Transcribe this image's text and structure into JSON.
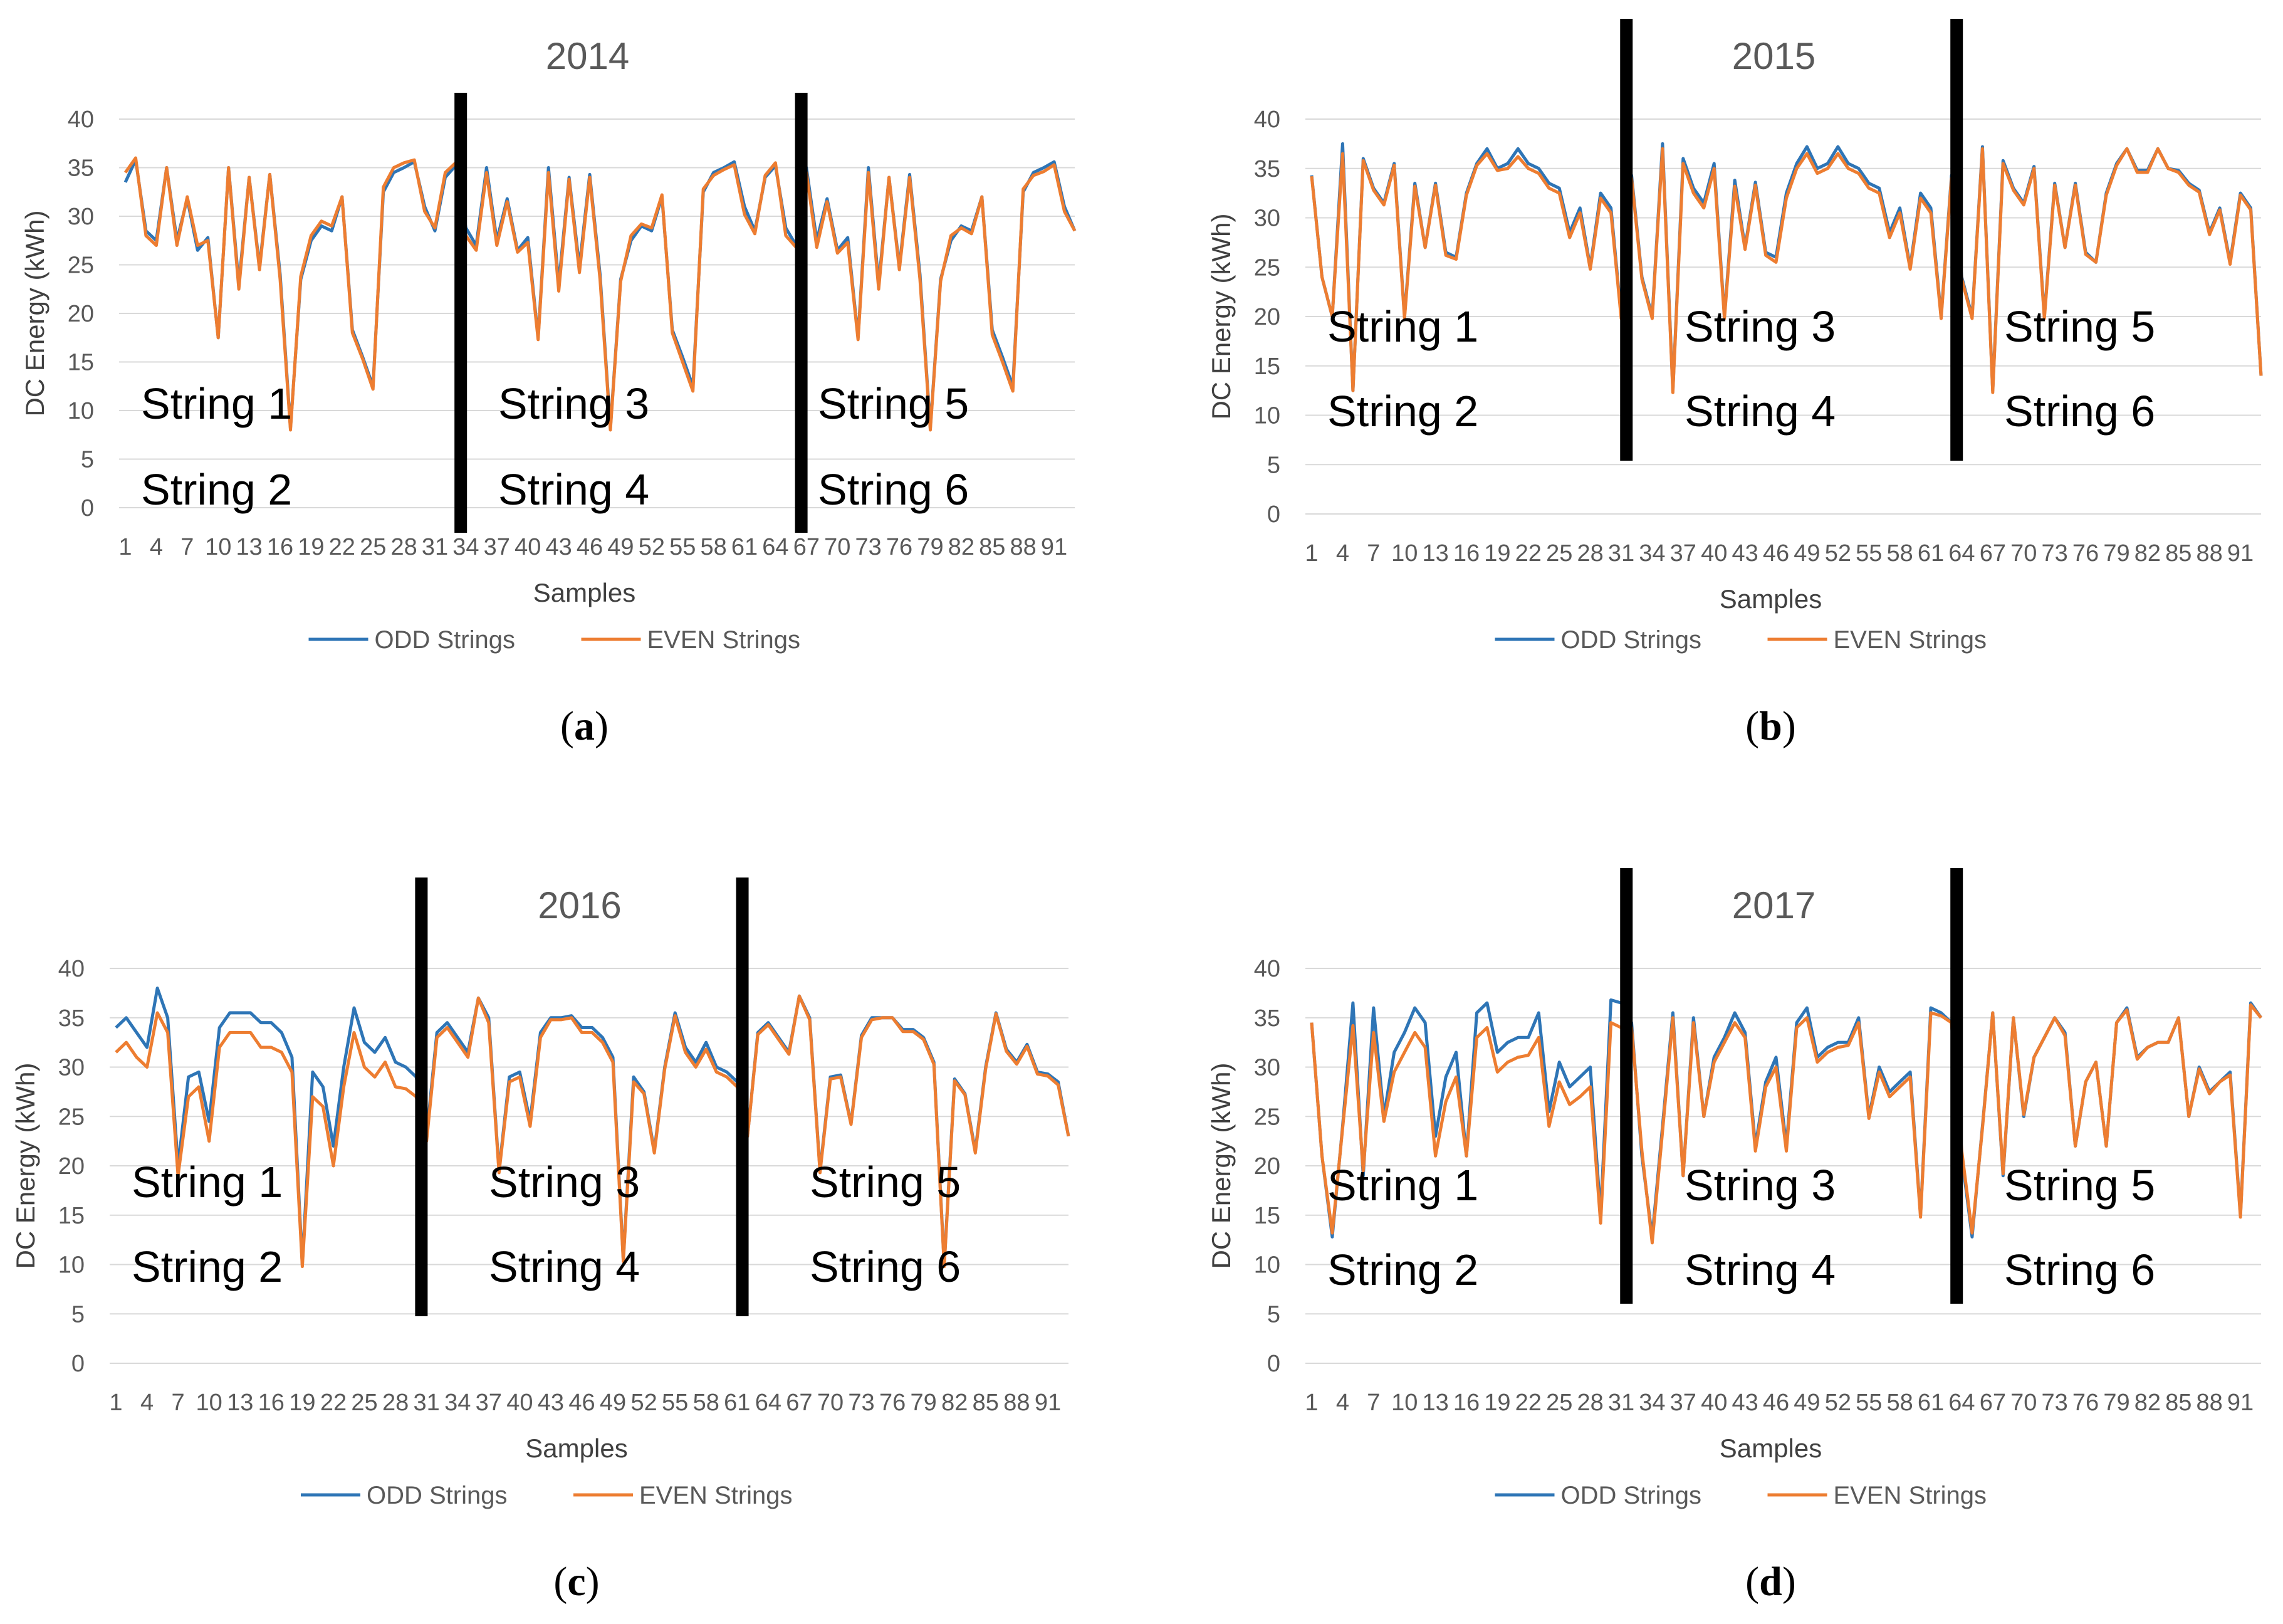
{
  "colors": {
    "odd": "#2e75b6",
    "even": "#ed7d31",
    "separator": "#000000"
  },
  "chart_data": [
    {
      "type": "line",
      "panel": "a",
      "caption": "a",
      "title": "2014",
      "xlabel": "Samples",
      "ylabel": "DC Energy (kWh)",
      "ylim": [
        0,
        40
      ],
      "yticks": [
        "0",
        "5",
        "10",
        "15",
        "20",
        "25",
        "30",
        "35",
        "40"
      ],
      "xticks": [
        "1",
        "4",
        "7",
        "10",
        "13",
        "16",
        "19",
        "22",
        "25",
        "28",
        "31",
        "34",
        "37",
        "40",
        "43",
        "46",
        "49",
        "52",
        "55",
        "58",
        "61",
        "64",
        "67",
        "70",
        "73",
        "76",
        "79",
        "82",
        "85",
        "88",
        "91"
      ],
      "legend": [
        "ODD Strings",
        "EVEN Strings"
      ],
      "string_labels": [
        [
          "String 1",
          "String 2"
        ],
        [
          "String 3",
          "String 4"
        ],
        [
          "String 5",
          "String 6"
        ]
      ],
      "separators_after_sample": [
        33,
        66
      ],
      "series": [
        {
          "name": "ODD Strings",
          "values": [
            33.5,
            35.8,
            28.5,
            27.5,
            35,
            27.5,
            31.8,
            26.5,
            27.8,
            17.5,
            35,
            23,
            34,
            24.8,
            34.3,
            24,
            8.2,
            23.5,
            27.5,
            29,
            28.5,
            32,
            18.3,
            15.5,
            12.5,
            32.5,
            34.5,
            35,
            35.6,
            31,
            28.5,
            34,
            35.2,
            28.8,
            27,
            35,
            27.5,
            31.8,
            26.5,
            27.8,
            17.5,
            35,
            23,
            34,
            24.8,
            34.3,
            24,
            8.2,
            23.5,
            27.5,
            29,
            28.5,
            32,
            18.3,
            15.5,
            12.5,
            32.5,
            34.5,
            35,
            35.6,
            31,
            28.5,
            34,
            35.2,
            28.8,
            27,
            35,
            27.5,
            31.8,
            26.5,
            27.8,
            17.5,
            35,
            23,
            34,
            24.8,
            34.3,
            24,
            8.2,
            23.5,
            27.5,
            29,
            28.5,
            32,
            18.3,
            15.5,
            12.5,
            32.5,
            34.5,
            35,
            35.6,
            31,
            28.5
          ]
        },
        {
          "name": "EVEN Strings",
          "values": [
            34.5,
            36,
            28,
            27,
            35,
            27,
            32,
            27,
            27.5,
            17.5,
            35,
            22.5,
            34,
            24.5,
            34.3,
            23.5,
            8,
            23.8,
            28,
            29.5,
            29,
            32,
            18,
            15.3,
            12.2,
            33,
            35,
            35.5,
            35.8,
            30.5,
            28.8,
            34.5,
            35.5,
            28,
            26.5,
            34.5,
            27,
            31.5,
            26.3,
            27.3,
            17.3,
            34.5,
            22.3,
            33.8,
            24.2,
            34,
            23.5,
            8,
            23.3,
            28,
            29.2,
            28.8,
            32.2,
            18,
            15,
            12,
            32.8,
            34.2,
            34.8,
            35.3,
            30.2,
            28.2,
            34.2,
            35.5,
            28,
            26.8,
            34.5,
            26.8,
            31.5,
            26.2,
            27.3,
            17.3,
            34.5,
            22.5,
            34,
            24.5,
            34,
            23.5,
            8,
            23.3,
            28,
            28.8,
            28.2,
            32,
            17.8,
            15,
            12,
            32.8,
            34.2,
            34.6,
            35.3,
            30.5,
            28.5
          ]
        }
      ]
    },
    {
      "type": "line",
      "panel": "b",
      "caption": "b",
      "title": "2015",
      "xlabel": "Samples",
      "ylabel": "DC Energy (kWh)",
      "ylim": [
        0,
        40
      ],
      "yticks": [
        "0",
        "5",
        "10",
        "15",
        "20",
        "25",
        "30",
        "35",
        "40"
      ],
      "xticks": [
        "1",
        "4",
        "7",
        "10",
        "13",
        "16",
        "19",
        "22",
        "25",
        "28",
        "31",
        "34",
        "37",
        "40",
        "43",
        "46",
        "49",
        "52",
        "55",
        "58",
        "61",
        "64",
        "67",
        "70",
        "73",
        "76",
        "79",
        "82",
        "85",
        "88",
        "91"
      ],
      "legend": [
        "ODD Strings",
        "EVEN Strings"
      ],
      "string_labels": [
        [
          "String 1",
          "String 2"
        ],
        [
          "String 3",
          "String 4"
        ],
        [
          "String 5",
          "String 6"
        ]
      ],
      "separators_after_sample": [
        31,
        63
      ],
      "series": [
        {
          "name": "ODD Strings",
          "values": [
            34.3,
            24,
            20,
            37.5,
            12.5,
            36,
            33,
            31.5,
            35.5,
            20,
            33.5,
            27,
            33.5,
            26.5,
            26,
            32.5,
            35.5,
            37,
            35,
            35.5,
            37,
            35.5,
            35,
            33.5,
            33,
            28.5,
            31,
            25,
            32.5,
            31,
            20,
            34.3,
            24,
            20,
            37.5,
            12.5,
            36,
            33,
            31.5,
            35.5,
            20,
            33.8,
            27,
            33.6,
            26.5,
            26,
            32.5,
            35.5,
            37.2,
            35,
            35.5,
            37.2,
            35.5,
            35,
            33.5,
            33,
            28.5,
            31,
            25,
            32.5,
            31,
            20,
            34.3,
            24,
            20,
            37.2,
            12.5,
            35.8,
            33,
            31.5,
            35.2,
            20,
            33.5,
            27,
            33.5,
            26.5,
            25.5,
            32.5,
            35.5,
            37,
            34.8,
            34.8,
            37,
            35,
            34.8,
            33.5,
            32.8,
            28.5,
            31,
            25.5,
            32.5,
            31,
            14
          ]
        },
        {
          "name": "EVEN Strings",
          "values": [
            34.2,
            24,
            20,
            36.5,
            12.5,
            35.8,
            32.8,
            31.3,
            35.3,
            19.8,
            33.2,
            27,
            33.3,
            26.2,
            25.8,
            32.3,
            35.3,
            36.5,
            34.8,
            35,
            36.2,
            35,
            34.5,
            33,
            32.5,
            28,
            30.5,
            24.8,
            32,
            30.5,
            19.8,
            34,
            23.8,
            19.8,
            37,
            12.3,
            35.5,
            32.5,
            31,
            35,
            19.8,
            33.2,
            26.8,
            33.3,
            26.2,
            25.5,
            32,
            35,
            36.5,
            34.5,
            35,
            36.5,
            35,
            34.5,
            33,
            32.5,
            28,
            30.5,
            24.8,
            32,
            30.5,
            19.8,
            34,
            23.8,
            19.8,
            37,
            12.3,
            35.5,
            32.8,
            31.3,
            35,
            19.8,
            33.3,
            27,
            33.3,
            26.3,
            25.5,
            32.3,
            35.3,
            37,
            34.6,
            34.6,
            37,
            35,
            34.6,
            33.3,
            32.6,
            28.3,
            30.8,
            25.3,
            32.3,
            30.8,
            14
          ]
        }
      ]
    },
    {
      "type": "line",
      "panel": "c",
      "caption": "c",
      "title": "2016",
      "xlabel": "Samples",
      "ylabel": "DC Energy (kWh)",
      "ylim": [
        0,
        40
      ],
      "yticks": [
        "0",
        "5",
        "10",
        "15",
        "20",
        "25",
        "30",
        "35",
        "40"
      ],
      "xticks": [
        "1",
        "4",
        "7",
        "10",
        "13",
        "16",
        "19",
        "22",
        "25",
        "28",
        "31",
        "34",
        "37",
        "40",
        "43",
        "46",
        "49",
        "52",
        "55",
        "58",
        "61",
        "64",
        "67",
        "70",
        "73",
        "76",
        "79",
        "82",
        "85",
        "88",
        "91"
      ],
      "legend": [
        "ODD Strings",
        "EVEN Strings"
      ],
      "string_labels": [
        [
          "String 1",
          "String 2"
        ],
        [
          "String 3",
          "String 4"
        ],
        [
          "String 5",
          "String 6"
        ]
      ],
      "separators_after_sample": [
        30,
        61
      ],
      "series": [
        {
          "name": "ODD Strings",
          "values": [
            34,
            35,
            33.5,
            32,
            38,
            35,
            20,
            29,
            29.5,
            24.5,
            34,
            35.5,
            35.5,
            35.5,
            34.5,
            34.5,
            33.5,
            31,
            10,
            29.5,
            28,
            22,
            30,
            36,
            32.5,
            31.5,
            33,
            30.5,
            30,
            29,
            23,
            33.5,
            34.5,
            33,
            31.5,
            37,
            35,
            19.5,
            29,
            29.5,
            24.5,
            33.5,
            35,
            35,
            35.2,
            34,
            34,
            33,
            31,
            10.5,
            29,
            27.5,
            21.5,
            30,
            35.5,
            32,
            30.5,
            32.5,
            30,
            29.5,
            28.5,
            23,
            33.5,
            34.5,
            33,
            31.5,
            37.2,
            35,
            19.5,
            29,
            29.2,
            24.3,
            33.2,
            35,
            35,
            35,
            33.8,
            33.8,
            33,
            30.5,
            10,
            28.8,
            27.3,
            21.5,
            30,
            35.5,
            31.8,
            30.5,
            32.3,
            29.5,
            29.3,
            28.5,
            23
          ]
        },
        {
          "name": "EVEN Strings",
          "values": [
            31.5,
            32.5,
            31,
            30,
            35.5,
            33.5,
            19,
            27,
            28,
            22.5,
            32,
            33.5,
            33.5,
            33.5,
            32,
            32,
            31.5,
            29.5,
            9.8,
            27,
            26,
            20,
            28,
            33.5,
            30,
            29,
            30.5,
            28,
            27.8,
            27,
            22.5,
            33,
            34,
            32.5,
            31,
            37,
            34.5,
            19.3,
            28.5,
            29,
            24,
            33,
            34.8,
            34.8,
            35,
            33.5,
            33.5,
            32.5,
            30.5,
            10.3,
            28.5,
            27.3,
            21.3,
            29.8,
            35.2,
            31.5,
            30,
            31.8,
            29.5,
            29,
            28,
            23,
            33.3,
            34.3,
            32.8,
            31.3,
            37.2,
            34.8,
            19.3,
            28.8,
            29,
            24.2,
            33,
            34.8,
            35,
            35,
            33.6,
            33.6,
            32.8,
            30.3,
            9.8,
            28.6,
            27.2,
            21.3,
            29.8,
            35.4,
            31.6,
            30.3,
            32.1,
            29.3,
            29.1,
            28.2,
            23
          ]
        }
      ]
    },
    {
      "type": "line",
      "panel": "d",
      "caption": "d",
      "title": "2017",
      "xlabel": "Samples",
      "ylabel": "DC Energy (kWh)",
      "ylim": [
        0,
        40
      ],
      "yticks": [
        "0",
        "5",
        "10",
        "15",
        "20",
        "25",
        "30",
        "35",
        "40"
      ],
      "xticks": [
        "1",
        "4",
        "7",
        "10",
        "13",
        "16",
        "19",
        "22",
        "25",
        "28",
        "31",
        "34",
        "37",
        "40",
        "43",
        "46",
        "49",
        "52",
        "55",
        "58",
        "61",
        "64",
        "67",
        "70",
        "73",
        "76",
        "79",
        "82",
        "85",
        "88",
        "91"
      ],
      "legend": [
        "ODD Strings",
        "EVEN Strings"
      ],
      "string_labels": [
        [
          "String 1",
          "String 2"
        ],
        [
          "String 3",
          "String 4"
        ],
        [
          "String 5",
          "String 6"
        ]
      ],
      "separators_after_sample": [
        31,
        63
      ],
      "series": [
        {
          "name": "ODD Strings",
          "values": [
            34.5,
            21,
            12.8,
            24,
            36.5,
            19,
            36,
            25,
            31.5,
            33.5,
            36,
            34.5,
            23,
            29,
            31.5,
            21,
            35.5,
            36.5,
            31.5,
            32.5,
            33,
            33,
            35.5,
            25.5,
            30.5,
            28,
            29,
            30,
            15,
            36.8,
            36.5,
            34.5,
            21,
            12.8,
            24,
            35.5,
            19,
            35,
            25,
            31,
            33,
            35.5,
            33.5,
            22,
            28.5,
            31,
            22,
            34.5,
            36,
            31,
            32,
            32.5,
            32.5,
            35,
            25,
            30,
            27.5,
            28.5,
            29.5,
            15,
            36,
            35.5,
            34.5,
            21,
            12.8,
            24,
            35.5,
            19,
            35,
            25,
            31,
            33,
            35,
            33.5,
            22,
            28.5,
            30.5,
            22,
            34.5,
            36,
            31,
            32,
            32.5,
            32.5,
            35,
            25,
            30,
            27.5,
            28.5,
            29.5,
            15,
            36.5,
            35
          ]
        },
        {
          "name": "EVEN Strings",
          "values": [
            34.5,
            21,
            13.2,
            23.8,
            34.2,
            19.5,
            33.5,
            24.5,
            29.5,
            31.5,
            33.5,
            32,
            21,
            26.5,
            29,
            21,
            33,
            34,
            29.5,
            30.5,
            31,
            31.2,
            33,
            24,
            28.5,
            26.2,
            27,
            28,
            14.2,
            34.5,
            34,
            34,
            21.5,
            12.2,
            23.5,
            35,
            19,
            34.5,
            25,
            30.5,
            32.5,
            34.5,
            33,
            21.5,
            28,
            30,
            21.5,
            34,
            35,
            30.5,
            31.5,
            32,
            32.2,
            34.5,
            24.8,
            29.5,
            27,
            28,
            29,
            14.8,
            35.5,
            35.2,
            34.5,
            21.5,
            13.2,
            23.8,
            35.5,
            19.2,
            35,
            25.2,
            31,
            33,
            35,
            33.2,
            22,
            28.5,
            30.5,
            22,
            34.5,
            35.8,
            30.8,
            32,
            32.5,
            32.5,
            35,
            25,
            29.8,
            27.3,
            28.5,
            29.2,
            14.8,
            36.3,
            35
          ]
        }
      ]
    }
  ]
}
